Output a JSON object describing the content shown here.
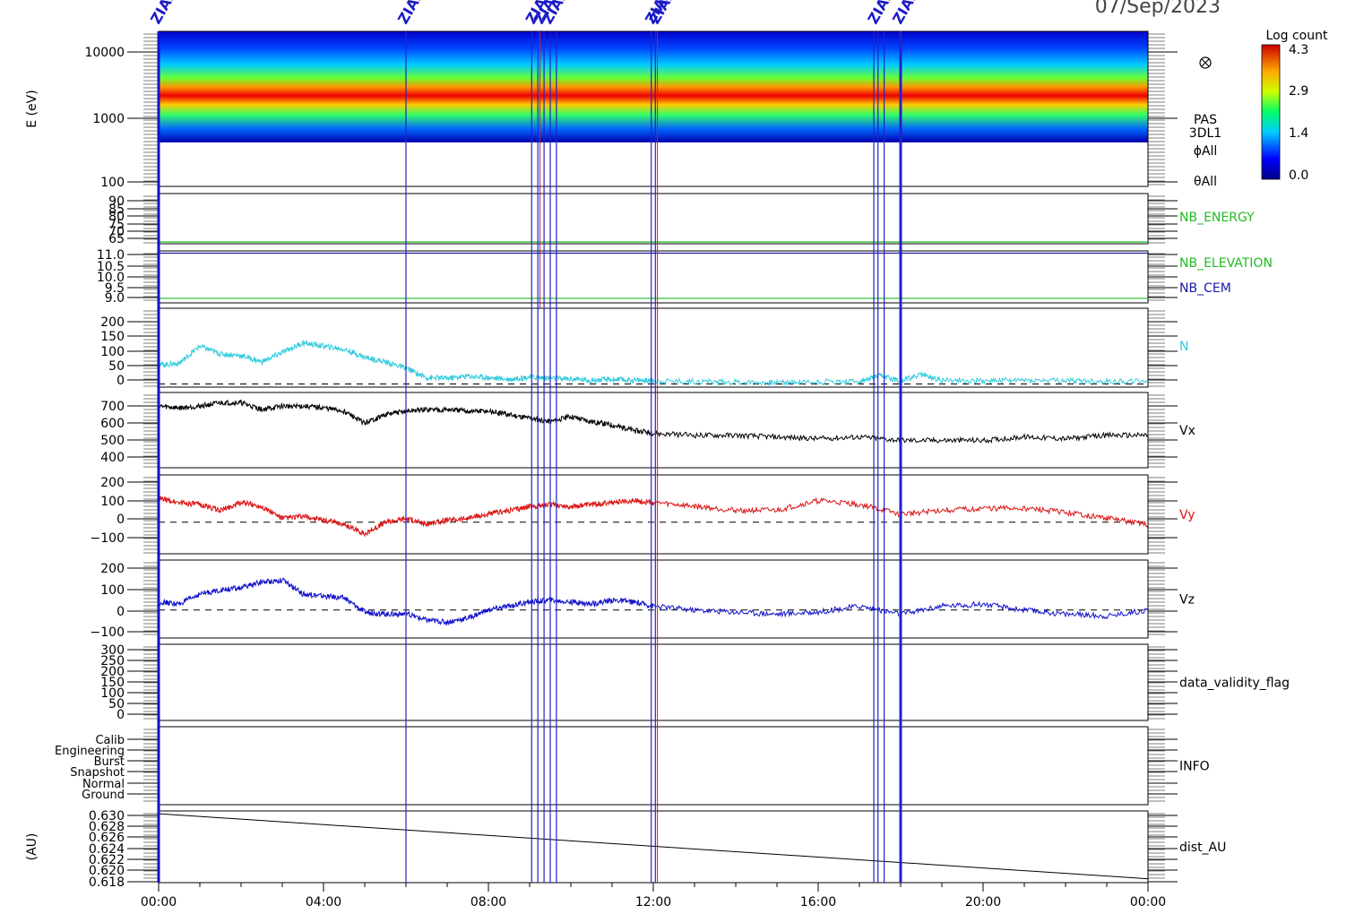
{
  "chart_data": {
    "type": "line",
    "date": "07/Sep/2023",
    "x_tick_labels": [
      "00:00",
      "04:00",
      "08:00",
      "12:00",
      "16:00",
      "20:00",
      "00:00"
    ],
    "xlim_hours": [
      0,
      24
    ],
    "vertical_event_lines_hours": [
      0,
      6.0,
      9.05,
      9.2,
      9.35,
      9.5,
      9.65,
      11.95,
      12.05,
      17.35,
      17.45,
      17.6,
      18.0
    ],
    "event_labels_hours": [
      0,
      6.0,
      9.1,
      9.3,
      9.5,
      12.0,
      12.1,
      17.4,
      18.0
    ],
    "event_label_text": "ZIAS",
    "colorbar": {
      "label": "Log count",
      "ticks": [
        "4.3",
        "2.9",
        "1.4",
        "0.0"
      ]
    },
    "panels": [
      {
        "id": "spectrogram",
        "type": "heatmap",
        "ylabel": "E (eV)",
        "scale": "log",
        "ylim": [
          100,
          20000
        ],
        "y_tick_labels": [
          "10000",
          "1000",
          "100"
        ],
        "right_labels": [
          "PAS",
          "3DL1",
          "ϕAll",
          "θAll"
        ],
        "energy_band_eV": [
          450,
          20000
        ]
      },
      {
        "id": "nb_energy",
        "ylim": [
          63,
          91
        ],
        "y_tick_labels": [
          "90",
          "85",
          "80",
          "75",
          "70",
          "65"
        ],
        "right_labels": [
          "NB_ENERGY"
        ],
        "series": [
          {
            "name": "NB_ENERGY",
            "color": "#22bb22",
            "value": 64
          }
        ]
      },
      {
        "id": "nb_elev",
        "ylim": [
          8.8,
          11.1
        ],
        "y_tick_labels": [
          "11.0",
          "10.5",
          "10.0",
          "9.5",
          "9.0"
        ],
        "right_labels": [
          "NB_ELEVATION",
          "NB_CEM"
        ],
        "series": [
          {
            "name": "NB_ELEVATION",
            "color": "#22bb22",
            "value": 9.0
          },
          {
            "name": "NB_CEM",
            "color": "#1a1aaa",
            "value": 11.0
          }
        ]
      },
      {
        "id": "n",
        "ylim": [
          -10,
          240
        ],
        "y_tick_labels": [
          "200",
          "150",
          "100",
          "50",
          "0"
        ],
        "right_labels": [
          "N"
        ],
        "color": "#33ccdd",
        "zero_dash": true,
        "x": [
          0,
          0.5,
          1,
          1.5,
          2,
          2.5,
          3,
          3.5,
          4,
          4.5,
          5,
          5.5,
          6,
          6.5,
          7,
          7.5,
          8,
          8.5,
          9,
          9.5,
          10,
          10.5,
          11,
          11.5,
          12,
          13,
          14,
          15,
          16,
          17,
          17.5,
          18,
          18.5,
          19,
          20,
          21,
          22,
          23,
          24
        ],
        "y": [
          60,
          65,
          120,
          95,
          90,
          70,
          100,
          130,
          120,
          110,
          85,
          70,
          50,
          20,
          18,
          25,
          20,
          15,
          22,
          18,
          16,
          12,
          14,
          12,
          10,
          8,
          6,
          5,
          7,
          8,
          25,
          10,
          30,
          12,
          10,
          12,
          10,
          8,
          9
        ]
      },
      {
        "id": "vx",
        "ylim": [
          340,
          780
        ],
        "y_tick_labels": [
          "700",
          "600",
          "500",
          "400"
        ],
        "right_labels": [
          "Vx"
        ],
        "color": "#000000",
        "x": [
          0,
          0.5,
          1,
          1.5,
          2,
          2.5,
          3,
          3.5,
          4,
          4.5,
          5,
          5.5,
          6,
          6.5,
          7,
          7.5,
          8,
          8.5,
          9,
          9.5,
          10,
          10.5,
          11,
          11.5,
          12,
          13,
          14,
          15,
          16,
          17,
          18,
          19,
          20,
          21,
          22,
          23,
          24
        ],
        "y": [
          700,
          690,
          700,
          720,
          720,
          680,
          700,
          700,
          690,
          670,
          600,
          650,
          670,
          680,
          680,
          670,
          670,
          650,
          630,
          610,
          640,
          610,
          590,
          560,
          540,
          530,
          530,
          520,
          510,
          520,
          500,
          500,
          500,
          520,
          510,
          530,
          530
        ]
      },
      {
        "id": "vy",
        "ylim": [
          -160,
          240
        ],
        "y_tick_labels": [
          "200",
          "100",
          "0",
          "−100"
        ],
        "right_labels": [
          "Vy"
        ],
        "color": "#dd1111",
        "zero_dash": true,
        "x": [
          0,
          0.5,
          1,
          1.5,
          2,
          2.5,
          3,
          3.5,
          4,
          4.5,
          5,
          5.5,
          6,
          6.5,
          7,
          7.5,
          8,
          8.5,
          9,
          9.5,
          10,
          10.5,
          11,
          11.5,
          12,
          13,
          14,
          15,
          16,
          17,
          18,
          19,
          20,
          21,
          22,
          23,
          24
        ],
        "y": [
          120,
          100,
          90,
          60,
          100,
          80,
          20,
          30,
          10,
          -10,
          -60,
          0,
          20,
          -10,
          10,
          20,
          40,
          60,
          80,
          90,
          80,
          90,
          100,
          110,
          100,
          80,
          60,
          60,
          110,
          90,
          40,
          60,
          70,
          70,
          50,
          20,
          -10
        ]
      },
      {
        "id": "vz",
        "ylim": [
          -140,
          250
        ],
        "y_tick_labels": [
          "200",
          "100",
          "0",
          "−100"
        ],
        "right_labels": [
          "Vz"
        ],
        "color": "#1111cc",
        "zero_dash": true,
        "x": [
          0,
          0.5,
          1,
          1.5,
          2,
          2.5,
          3,
          3.5,
          4,
          4.5,
          5,
          5.5,
          6,
          6.5,
          7,
          7.5,
          8,
          8.5,
          9,
          9.5,
          10,
          10.5,
          11,
          11.5,
          12,
          13,
          14,
          15,
          16,
          17,
          18,
          19,
          20,
          21,
          22,
          23,
          24
        ],
        "y": [
          40,
          30,
          80,
          100,
          110,
          140,
          150,
          80,
          70,
          60,
          -10,
          -20,
          -20,
          -50,
          -60,
          -40,
          0,
          20,
          40,
          50,
          40,
          30,
          50,
          40,
          20,
          0,
          -10,
          -20,
          -10,
          20,
          -20,
          20,
          30,
          0,
          -20,
          -30,
          0
        ]
      },
      {
        "id": "dvf",
        "ylim": [
          -20,
          310
        ],
        "y_tick_labels": [
          "300",
          "250",
          "200",
          "150",
          "100",
          "50",
          "0"
        ],
        "right_labels": [
          "data_validity_flag"
        ]
      },
      {
        "id": "info",
        "y_tick_labels": [
          "Calib",
          "Engineering",
          "Burst",
          "Snapshot",
          "Normal",
          "Ground"
        ],
        "right_labels": [
          "INFO"
        ]
      },
      {
        "id": "dist",
        "ylabel": "(AU)",
        "ylim": [
          0.6175,
          0.6305
        ],
        "y_tick_labels": [
          "0.630",
          "0.628",
          "0.626",
          "0.624",
          "0.622",
          "0.620",
          "0.618"
        ],
        "right_labels": [
          "dist_AU"
        ],
        "color": "#000000",
        "x": [
          0,
          24
        ],
        "y": [
          0.63,
          0.6182
        ]
      }
    ]
  }
}
